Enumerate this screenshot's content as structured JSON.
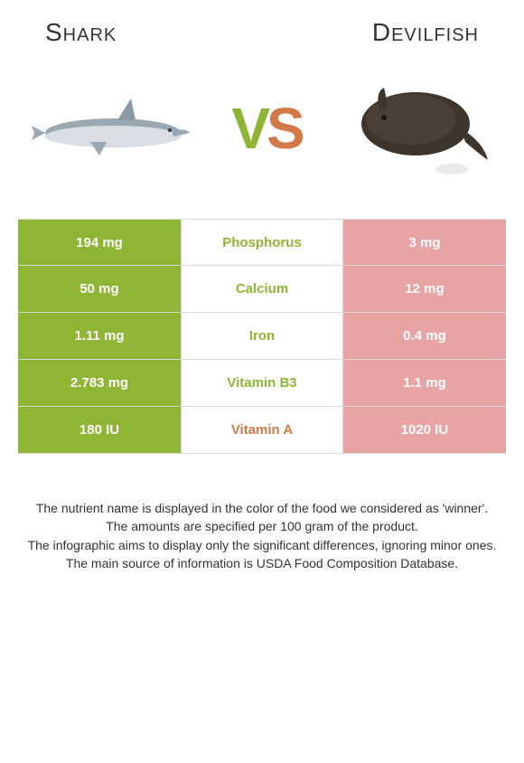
{
  "titles": {
    "left": "Shark",
    "right": "Devilfish"
  },
  "vs": {
    "v": "V",
    "s": "S"
  },
  "colors": {
    "left_bg": "#8fb535",
    "right_bg": "#e8a4a4",
    "left_text": "#8fb535",
    "right_text": "#d37847",
    "border": "#d8d8d8",
    "body": "#333333"
  },
  "rows": [
    {
      "left": "194 mg",
      "nutrient": "Phosphorus",
      "right": "3 mg",
      "winner": "left"
    },
    {
      "left": "50 mg",
      "nutrient": "Calcium",
      "right": "12 mg",
      "winner": "left"
    },
    {
      "left": "1.11 mg",
      "nutrient": "Iron",
      "right": "0.4 mg",
      "winner": "left"
    },
    {
      "left": "2.783 mg",
      "nutrient": "Vitamin B3",
      "right": "1.1 mg",
      "winner": "left"
    },
    {
      "left": "180 IU",
      "nutrient": "Vitamin A",
      "right": "1020 IU",
      "winner": "right"
    }
  ],
  "footnotes": [
    "The nutrient name is displayed in the color of the food we considered as 'winner'.",
    "The amounts are specified per 100 gram of the product.",
    "The infographic aims to display only the significant differences, ignoring minor ones.",
    "The main source of information is USDA Food Composition Database."
  ]
}
